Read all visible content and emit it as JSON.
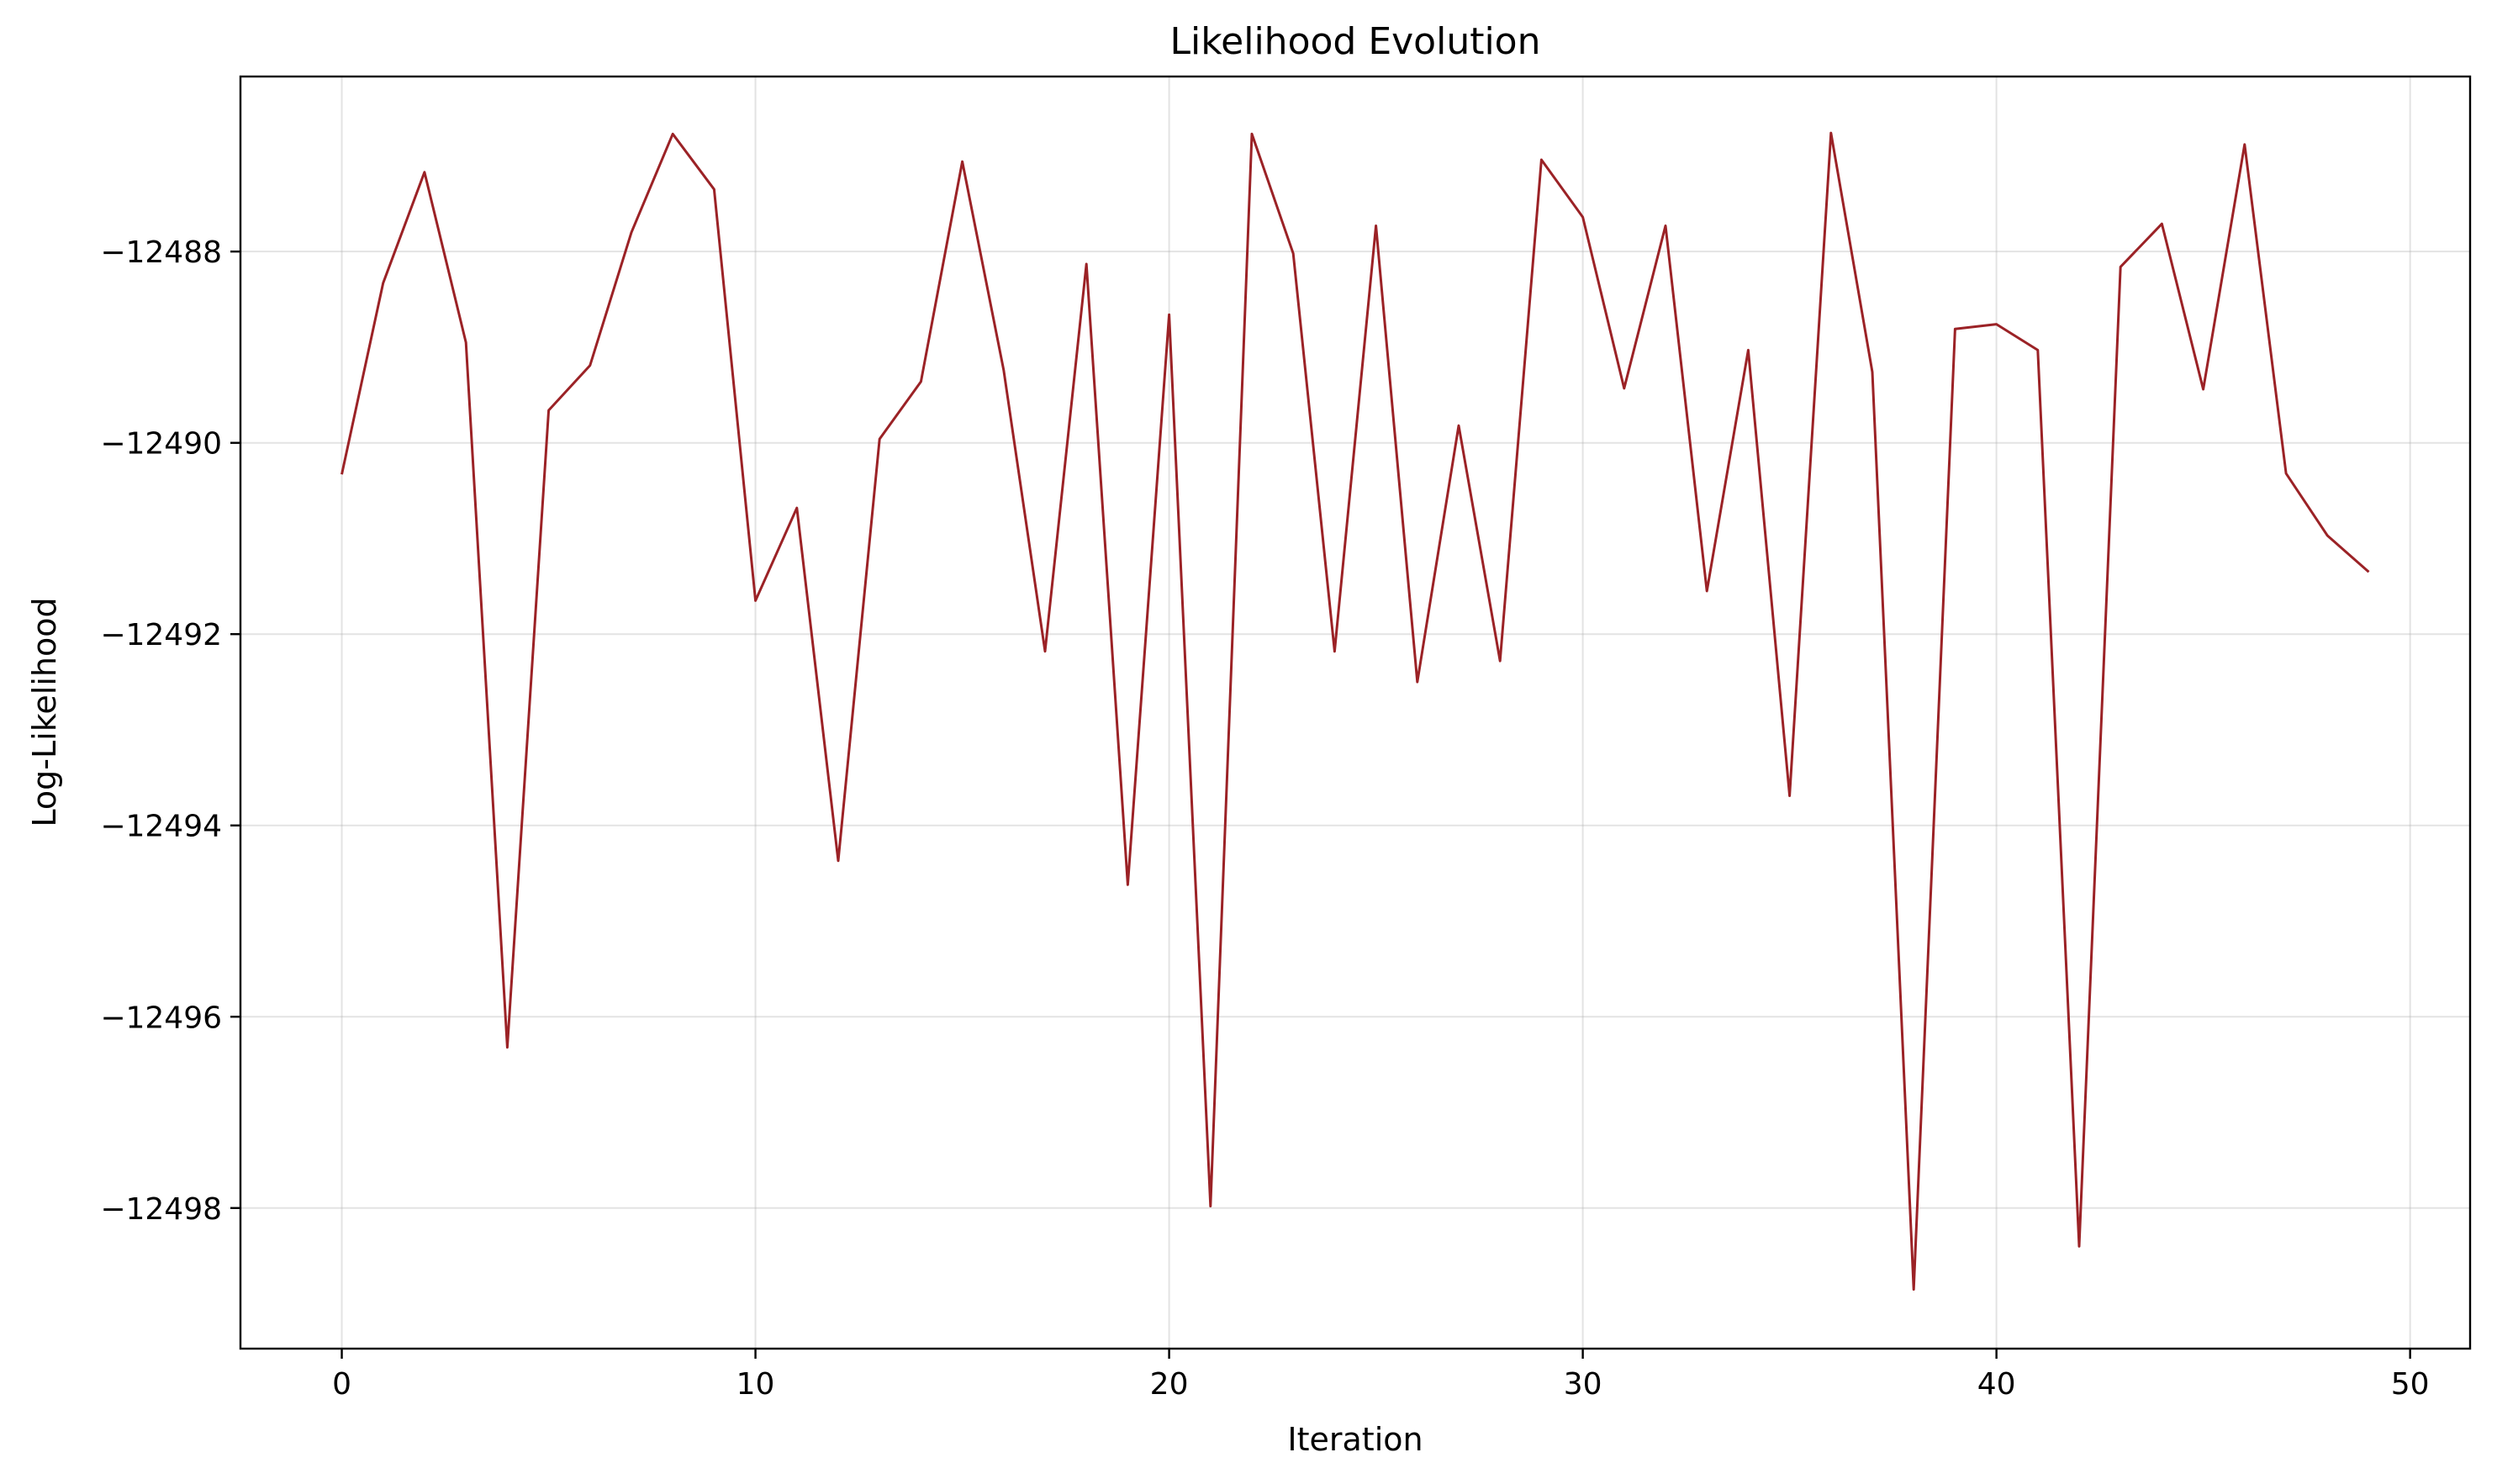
{
  "chart_data": {
    "type": "line",
    "title": "Likelihood Evolution",
    "xlabel": "Iteration",
    "ylabel": "Log-Likelihood",
    "xlim": [
      -2.45,
      51.45
    ],
    "ylim": [
      -12499.47,
      -12486.17
    ],
    "xticks": [
      0,
      10,
      20,
      30,
      40,
      50
    ],
    "xtick_labels": [
      "0",
      "10",
      "20",
      "30",
      "40",
      "50"
    ],
    "yticks": [
      -12488,
      -12490,
      -12492,
      -12494,
      -12496,
      -12498
    ],
    "ytick_labels": [
      "−12488",
      "−12490",
      "−12492",
      "−12494",
      "−12496",
      "−12498"
    ],
    "grid": true,
    "color": "#9b2226",
    "x": [
      0,
      1,
      2,
      3,
      4,
      5,
      6,
      7,
      8,
      9,
      10,
      11,
      12,
      13,
      14,
      15,
      16,
      17,
      18,
      19,
      20,
      21,
      22,
      23,
      24,
      25,
      26,
      27,
      28,
      29,
      30,
      31,
      32,
      33,
      34,
      35,
      36,
      37,
      38,
      39,
      40,
      41,
      42,
      43,
      44,
      45,
      46,
      47,
      48,
      49
    ],
    "values": [
      -12490.33,
      -12488.33,
      -12487.17,
      -12488.95,
      -12496.32,
      -12489.66,
      -12489.19,
      -12487.8,
      -12486.77,
      -12487.35,
      -12491.65,
      -12490.68,
      -12494.37,
      -12489.96,
      -12489.36,
      -12487.06,
      -12489.24,
      -12492.18,
      -12488.13,
      -12494.62,
      -12488.66,
      -12497.98,
      -12486.77,
      -12488.02,
      -12492.18,
      -12487.73,
      -12492.5,
      -12489.82,
      -12492.28,
      -12487.04,
      -12487.64,
      -12489.43,
      -12487.73,
      -12491.55,
      -12489.03,
      -12493.69,
      -12486.76,
      -12489.26,
      -12498.85,
      -12488.81,
      -12488.76,
      -12489.03,
      -12498.4,
      -12488.16,
      -12487.71,
      -12489.44,
      -12486.88,
      -12490.32,
      -12490.97,
      -12491.35
    ]
  }
}
